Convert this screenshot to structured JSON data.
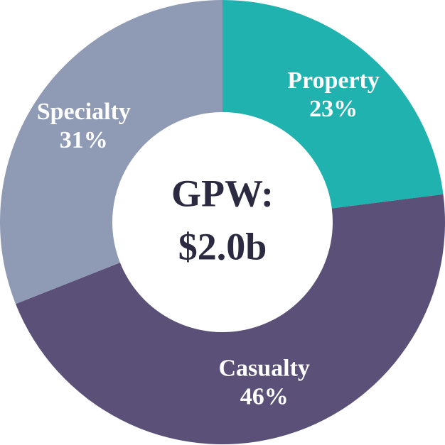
{
  "chart_data": {
    "type": "donut",
    "center_text": [
      "GPW:",
      "$2.0b"
    ],
    "categories": [
      "Property",
      "Casualty",
      "Specialty"
    ],
    "values": [
      23,
      46,
      31
    ],
    "value_labels": [
      "23%",
      "46%",
      "31%"
    ],
    "colors": [
      "#1fb2ae",
      "#5b5078",
      "#8f9ab5"
    ]
  }
}
